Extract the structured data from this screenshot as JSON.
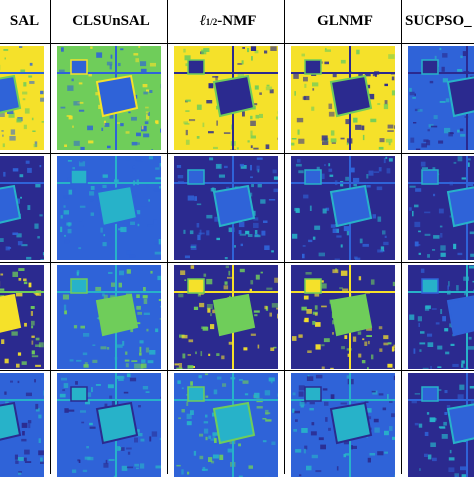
{
  "columns": [
    {
      "id": "c0",
      "label": "SAL"
    },
    {
      "id": "c1",
      "label": "CLSUnSAL"
    },
    {
      "id": "c2",
      "label_prefix": "ℓ",
      "label_sub": "1/2",
      "label_suffix": "-NMF"
    },
    {
      "id": "c3",
      "label": "GLNMF"
    },
    {
      "id": "c4",
      "label": "SUCPSO_"
    }
  ],
  "rows": 4,
  "colors": {
    "palette_dark": "#2b2a8f",
    "palette_blue": "#2f63d8",
    "palette_cyan": "#27b2c9",
    "palette_green": "#6fcd5a",
    "palette_yellow": "#f5e12a"
  }
}
